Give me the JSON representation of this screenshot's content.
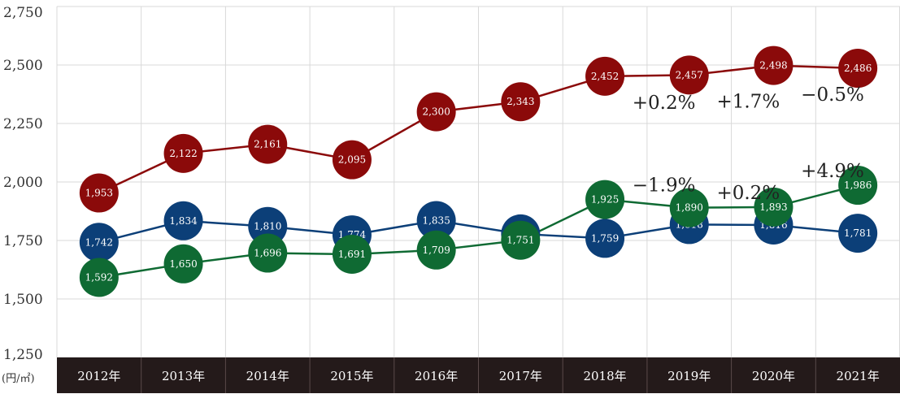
{
  "chart_data": {
    "type": "line",
    "title": "",
    "xlabel": "",
    "ylabel": "",
    "y_unit": "(円/㎡)",
    "ylim": [
      1250,
      2750
    ],
    "yticks": [
      "1,250",
      "1,500",
      "1,750",
      "2,000",
      "2,250",
      "2,500",
      "2,750"
    ],
    "yticks_values": [
      1250,
      1500,
      1750,
      2000,
      2250,
      2500,
      2750
    ],
    "categories": [
      "2012年",
      "2013年",
      "2014年",
      "2015年",
      "2016年",
      "2017年",
      "2018年",
      "2019年",
      "2020年",
      "2021年"
    ],
    "grid": true,
    "legend": "none",
    "series": [
      {
        "color": "#8b0a0a",
        "values": [
          1953,
          2122,
          2161,
          2095,
          2300,
          2343,
          2452,
          2457,
          2498,
          2486
        ],
        "labels": [
          "1,953",
          "2,122",
          "2,161",
          "2,095",
          "2,300",
          "2,343",
          "2,452",
          "2,457",
          "2,498",
          "2,486"
        ]
      },
      {
        "color": "#0c3f78",
        "values": [
          1742,
          1834,
          1810,
          1774,
          1835,
          1778,
          1759,
          1818,
          1816,
          1781
        ],
        "labels": [
          "1,742",
          "1,834",
          "1,810",
          "1,774",
          "1,835",
          "1,778",
          "1,759",
          "1,818",
          "1,816",
          "1,781"
        ]
      },
      {
        "color": "#0f6a33",
        "values": [
          1592,
          1650,
          1696,
          1691,
          1709,
          1751,
          1925,
          1890,
          1893,
          1986
        ],
        "labels": [
          "1,592",
          "1,650",
          "1,696",
          "1,691",
          "1,709",
          "1,751",
          "1,925",
          "1,890",
          "1,893",
          "1,986"
        ]
      }
    ],
    "annotations": [
      {
        "text": "+0.2%",
        "series": 0,
        "between": [
          6,
          7
        ]
      },
      {
        "text": "+1.7%",
        "series": 0,
        "between": [
          7,
          8
        ]
      },
      {
        "text": "−0.5%",
        "series": 0,
        "between": [
          8,
          9
        ]
      },
      {
        "text": "−1.9%",
        "series": 2,
        "between": [
          6,
          7
        ]
      },
      {
        "text": "+0.2%",
        "series": 2,
        "between": [
          7,
          8
        ]
      },
      {
        "text": "+4.9%",
        "series": 2,
        "between": [
          8,
          9
        ]
      }
    ],
    "colors": {
      "grid": "#d9d9d9",
      "axis_band": "#241a1a"
    }
  }
}
